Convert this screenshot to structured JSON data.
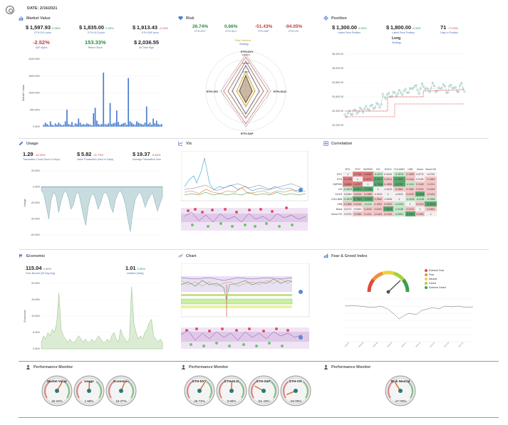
{
  "header": {
    "date": "DATE: 2/16/2021"
  },
  "market_value": {
    "title": "Market Value",
    "metrics": [
      {
        "prefix": "$",
        "value": "1,597.93",
        "pct": "0.36%",
        "label": "ETH-DXY price"
      },
      {
        "prefix": "$",
        "value": "1,835.00",
        "pct": "0.35%",
        "label": "ETH-GLD price"
      },
      {
        "prefix": "$",
        "value": "1,913.43",
        "pct": "-2.13%",
        "label": "ETH-S&P price"
      },
      {
        "prefix": "",
        "value": "-2.52%",
        "pct": "",
        "label": "S&P Alpha"
      },
      {
        "prefix": "",
        "value": "153.33%",
        "pct": "",
        "label": "Return Since"
      },
      {
        "prefix": "$",
        "value": "2,036.55",
        "pct": "",
        "label": "All Time High"
      }
    ],
    "ylabel": "Market Value",
    "yticks": [
      "2000.00%",
      "1500.00%",
      "1000.00%",
      "500.00%",
      "0.00%"
    ]
  },
  "risk": {
    "title": "Risk",
    "metrics": [
      {
        "value": "26.74%",
        "pct": "",
        "label": "ETH-DXY"
      },
      {
        "value": "0.66%",
        "pct": "",
        "label": "ETH-GLD"
      },
      {
        "value": "-51.43%",
        "pct": "",
        "label": "ETH-S&P"
      },
      {
        "value": "-94.05%",
        "pct": "",
        "label": "ETH-VIX"
      }
    ],
    "radar_title": "Risk Neutral",
    "radar_subtitle": "Strategy",
    "radar_labels": [
      "ETH-DXY",
      "ETH-GLD",
      "ETH-S&P",
      "ETH-VIX"
    ]
  },
  "position": {
    "title": "Position",
    "metrics": [
      {
        "prefix": "$",
        "value": "1,300.00",
        "pct": "0.00%",
        "label": "Latest Price Position"
      },
      {
        "prefix": "$",
        "value": "1,800.00",
        "pct": "0.00%",
        "label": "Latest Price Position"
      },
      {
        "prefix": "",
        "value": "71",
        "pct": "-71.00%",
        "label": "Days in Position"
      }
    ],
    "position_label": "Long",
    "position_sub": "Strategy",
    "yticks": [
      "$2,200.00",
      "$2,000.00",
      "$1,800.00",
      "$1,600.00",
      "$1,400.00",
      "$1,200.00"
    ]
  },
  "usage": {
    "title": "Usage",
    "metrics": [
      {
        "prefix": "",
        "value": "1.29",
        "pct": "-13.93%",
        "label": "Transaction Count (Hour in Days)"
      },
      {
        "prefix": "$",
        "value": "5.82",
        "pct": "-11.73%",
        "label": "Value Transaction (Hour in Days)"
      },
      {
        "prefix": "$",
        "value": "19.37",
        "pct": "-9.46%",
        "label": "Average Transaction Size"
      }
    ],
    "ylabel": "Usage",
    "yticks": [
      "20.00%",
      "0.00%",
      "-20.00%",
      "-40.00%",
      "-60.00%"
    ]
  },
  "vix": {
    "title": "Vix"
  },
  "correlation": {
    "title": "Correlation",
    "headers": [
      "",
      "BTC",
      "ETH",
      "S&P500",
      "VIX",
      "GOLD",
      "COLUMN",
      "US$",
      "Bond",
      "Bond VIX"
    ],
    "rows": [
      {
        "name": "BTC",
        "cells": [
          "1",
          "0.7745",
          "0.5583",
          "-0.1573",
          "0.0049",
          "-0.1579",
          "0.1355",
          "0.0771",
          "0.0732"
        ]
      },
      {
        "name": "ETH",
        "cells": [
          "0.7745",
          "1",
          "0.4797",
          "-0.3077",
          "0.2014",
          "-0.7521",
          "0.2144",
          "0.0151",
          "0.1263"
        ]
      },
      {
        "name": "S&P500",
        "cells": [
          "0.5583",
          "0.4797",
          "1",
          "-0.7384",
          "0.1655",
          "-0.3757",
          "-0.1111",
          "0.1162",
          "0.1211"
        ]
      },
      {
        "name": "VIX",
        "cells": [
          "-0.1573",
          "-0.3077",
          "-0.7384",
          "1",
          "-0.0221",
          "0.1562",
          "0.1281",
          "0.2201",
          "0.2103"
        ]
      },
      {
        "name": "GOLD",
        "cells": [
          "0.0049",
          "0.2014",
          "0.1655",
          "-0.0221",
          "1",
          "-0.0931",
          "0.2222",
          "-0.3101",
          "0.2134"
        ]
      },
      {
        "name": "COLUMN",
        "cells": [
          "-0.1579",
          "-0.7521",
          "-0.3757",
          "0.1562",
          "-0.0931",
          "1",
          "-0.1193",
          "-0.1135",
          "-0.2051"
        ]
      },
      {
        "name": "US$",
        "cells": [
          "0.1355",
          "0.2144",
          "-0.1111",
          "0.1281",
          "0.2222",
          "-0.1193",
          "1",
          "0.2113",
          "-0.3212"
        ]
      },
      {
        "name": "Bond",
        "cells": [
          "0.0771",
          "0.0151",
          "0.1162",
          "0.2201",
          "-0.3101",
          "-0.1135",
          "0.2113",
          "1",
          "0.2451"
        ]
      },
      {
        "name": "Bond VIX",
        "cells": [
          "0.0732",
          "0.1263",
          "0.1211",
          "0.2103",
          "0.2134",
          "-0.2051",
          "-0.3212",
          "0.2451",
          "1"
        ]
      }
    ]
  },
  "economic": {
    "title": "Economic",
    "metrics": [
      {
        "prefix": "",
        "value": "115.04",
        "pct": "0.00%",
        "label": "Fees Burned (30 Day Avg)"
      },
      {
        "prefix": "",
        "value": "1.01",
        "pct": "0.00%",
        "label": "Inflation (Daily)"
      }
    ],
    "ylabel": "Economic",
    "yticks": [
      "20.00%",
      "15.00%",
      "10.00%",
      "5.00%",
      "0.00%"
    ]
  },
  "chart": {
    "title": "Chart"
  },
  "fear_greed": {
    "title": "Fear & Greed Index",
    "legend": [
      "Extreme Fear",
      "Fear",
      "Neutral",
      "Greed",
      "Extreme Greed"
    ]
  },
  "performance": [
    {
      "title": "Performance Monitor",
      "gauges": [
        {
          "label": "Market Value",
          "value": "25.24%"
        },
        {
          "label": "Usage",
          "value": "1.58%"
        },
        {
          "label": "Economic",
          "value": "19.37%"
        }
      ]
    },
    {
      "title": "Performance Monitor",
      "gauges": [
        {
          "label": "ETH-DXY",
          "value": "26.74%"
        },
        {
          "label": "ETH-GLD",
          "value": "0.66%"
        },
        {
          "label": "ETH-S&P",
          "value": "-51.43%"
        },
        {
          "label": "ETH-VIX",
          "value": "-94.05%"
        }
      ]
    },
    {
      "title": "Performance Monitor",
      "gauges": [
        {
          "label": "Risk Neutral",
          "value": "-27.03%"
        }
      ]
    }
  ],
  "colors": {
    "accent": "#4a7fd0",
    "green": "#2a8a3a",
    "red": "#c83a3a",
    "pink": "#e0c8e8",
    "teal": "#7ab8b0"
  }
}
